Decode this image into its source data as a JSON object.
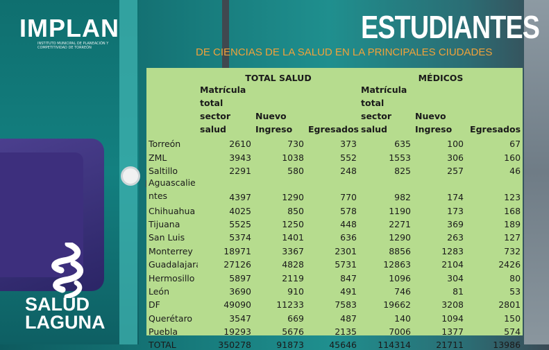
{
  "logos": {
    "implan": "IMPLAN",
    "implan_sub": "INSTITUTO MUNICIPAL DE PLANEACIÓN Y COMPETITIVIDAD DE TORREÓN",
    "salud_line1": "SALUD",
    "salud_line2": "LAGUNA"
  },
  "header": {
    "title": "ESTUDIANTES",
    "subtitle": "DE CIENCIAS DE LA SALUD EN LA PRINCIPALES CIUDADES"
  },
  "table": {
    "group_headers": [
      "TOTAL SALUD",
      "MÉDICOS"
    ],
    "columns": [
      "Matrícula total sector salud",
      "Nuevo Ingreso",
      "Egresados",
      "Matrícula total sector salud",
      "Nuevo Ingreso",
      "Egresados"
    ],
    "rows": [
      {
        "city": "Torreón",
        "v": [
          "2610",
          "730",
          "373",
          "635",
          "100",
          "67"
        ]
      },
      {
        "city": "ZML",
        "v": [
          "3943",
          "1038",
          "552",
          "1553",
          "306",
          "160"
        ]
      },
      {
        "city": "Saltillo",
        "v": [
          "2291",
          "580",
          "248",
          "825",
          "257",
          "46"
        ]
      },
      {
        "city": "Aguascalientes",
        "v": [
          "4397",
          "1290",
          "770",
          "982",
          "174",
          "123"
        ]
      },
      {
        "city": "Chihuahua",
        "v": [
          "4025",
          "850",
          "578",
          "1190",
          "173",
          "168"
        ]
      },
      {
        "city": "Tijuana",
        "v": [
          "5525",
          "1250",
          "448",
          "2271",
          "369",
          "189"
        ]
      },
      {
        "city": "San Luis",
        "v": [
          "5374",
          "1401",
          "636",
          "1290",
          "263",
          "127"
        ]
      },
      {
        "city": "Monterrey",
        "v": [
          "18971",
          "3367",
          "2301",
          "8856",
          "1283",
          "732"
        ]
      },
      {
        "city": "Guadalajara",
        "v": [
          "27126",
          "4828",
          "5731",
          "12863",
          "2104",
          "2426"
        ]
      },
      {
        "city": "Hermosillo",
        "v": [
          "5897",
          "2119",
          "847",
          "1096",
          "304",
          "80"
        ]
      },
      {
        "city": "León",
        "v": [
          "3690",
          "910",
          "491",
          "746",
          "81",
          "53"
        ]
      },
      {
        "city": "DF",
        "v": [
          "49090",
          "11233",
          "7583",
          "19662",
          "3208",
          "2801"
        ]
      },
      {
        "city": "Querétaro",
        "v": [
          "3547",
          "669",
          "487",
          "140",
          "1094",
          "150"
        ]
      },
      {
        "city": "Puebla",
        "v": [
          "19293",
          "5676",
          "2135",
          "7006",
          "1377",
          "574"
        ]
      },
      {
        "city": "TOTAL",
        "v": [
          "350278",
          "91873",
          "45646",
          "114314",
          "21711",
          "13986"
        ]
      }
    ]
  }
}
